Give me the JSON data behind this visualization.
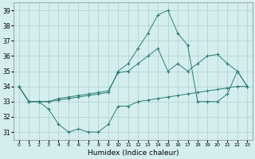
{
  "xlabel": "Humidex (Indice chaleur)",
  "xlim": [
    -0.5,
    23.5
  ],
  "ylim": [
    30.5,
    39.5
  ],
  "yticks": [
    31,
    32,
    33,
    34,
    35,
    36,
    37,
    38,
    39
  ],
  "xticks": [
    0,
    1,
    2,
    3,
    4,
    5,
    6,
    7,
    8,
    9,
    10,
    11,
    12,
    13,
    14,
    15,
    16,
    17,
    18,
    19,
    20,
    21,
    22,
    23
  ],
  "background_color": "#d4eeee",
  "grid_color": "#b0cccc",
  "line_color": "#2e7d72",
  "s1": [
    34,
    33,
    33,
    32.5,
    31.5,
    31,
    31.2,
    31,
    31,
    31.5,
    32.7,
    32.7,
    33.0,
    33.1,
    33.2,
    33.3,
    33.4,
    33.5,
    33.6,
    33.7,
    33.8,
    33.9,
    34.0,
    34.0
  ],
  "s2": [
    34,
    33,
    33,
    33.0,
    33.2,
    33.3,
    33.4,
    33.5,
    33.6,
    33.7,
    34.9,
    35.0,
    35.5,
    36.0,
    36.5,
    35.0,
    35.5,
    35.0,
    35.5,
    36.0,
    36.1,
    35.5,
    35.0,
    34.0
  ],
  "s3": [
    34,
    33,
    33,
    33.0,
    33.1,
    33.2,
    33.3,
    33.4,
    33.5,
    33.6,
    35.0,
    35.5,
    36.5,
    37.5,
    38.7,
    39.0,
    37.5,
    36.7,
    33.0,
    33.0,
    33.0,
    33.5,
    35.0,
    34.0
  ]
}
